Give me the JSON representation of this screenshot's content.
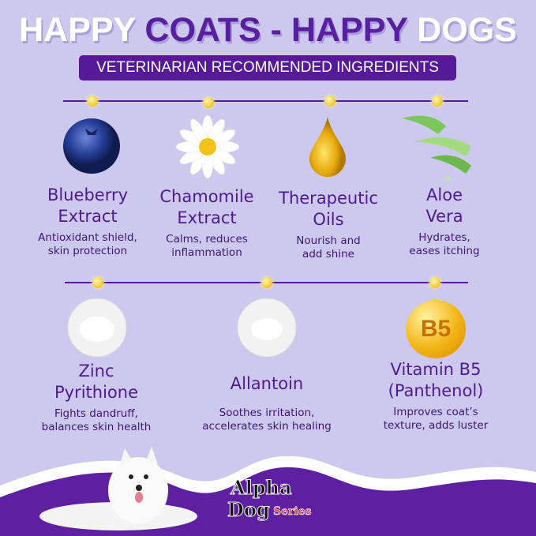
{
  "header": {
    "title_part1": "HAPPY ",
    "title_part2": "COATS - HAPPY",
    "title_part3": " DOGS",
    "subtitle": "VETERINARIAN RECOMMENDED INGREDIENTS"
  },
  "colors": {
    "background": "#cdc8ee",
    "accent": "#55199a",
    "dot": "#f3cf3c"
  },
  "ingredients": [
    {
      "name1": "Blueberry",
      "name2": "Extract",
      "desc1": "Antioxidant shield,",
      "desc2": "skin protection",
      "icon": "blueberry-icon"
    },
    {
      "name1": "Chamomile",
      "name2": "Extract",
      "desc1": "Calms, reduces",
      "desc2": "inflammation",
      "icon": "chamomile-icon"
    },
    {
      "name1": "Therapeutic",
      "name2": "Oils",
      "desc1": "Nourish and",
      "desc2": "add shine",
      "icon": "oil-drop-icon"
    },
    {
      "name1": "Aloe",
      "name2": "Vera",
      "desc1": "Hydrates,",
      "desc2": "eases itching",
      "icon": "aloe-icon"
    },
    {
      "name1": "Zinc",
      "name2": "Pyrithione",
      "desc1": "Fights dandruff,",
      "desc2": "balances skin health",
      "icon": "powder-bowl-icon"
    },
    {
      "name1": "Allantoin",
      "name2": "",
      "desc1": "Soothes irritation,",
      "desc2": "accelerates skin healing",
      "icon": "powder-bowl-icon"
    },
    {
      "name1": "Vitamin B5",
      "name2": "(Panthenol)",
      "desc1": "Improves coat’s",
      "desc2": "texture, adds luster",
      "icon": "vitamin-b5-icon",
      "badge": "B5"
    }
  ],
  "footer": {
    "logo_text": "Alpha Dog Series"
  }
}
